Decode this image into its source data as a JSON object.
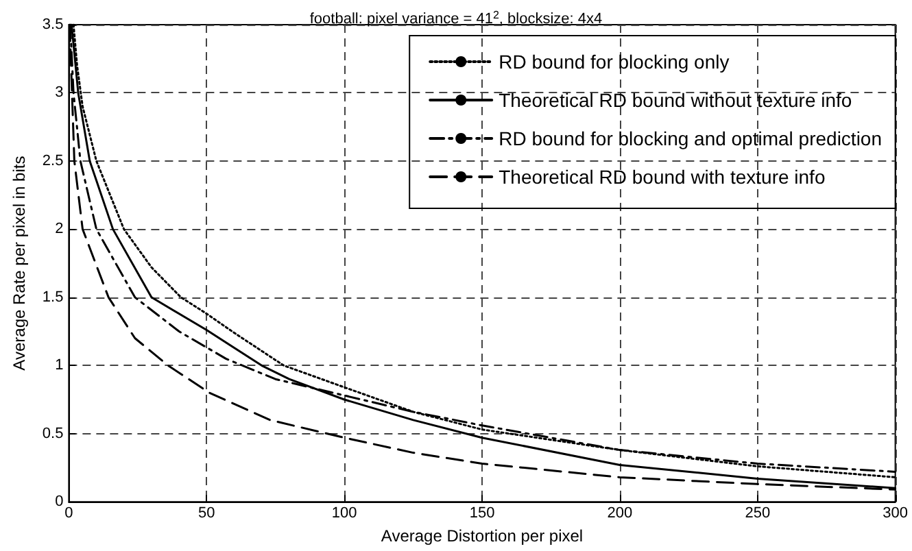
{
  "chart_data": {
    "type": "line",
    "title": "football: pixel variance = 41$^{2}$, blocksize: 4x4",
    "xlabel": "Average Distortion per pixel",
    "ylabel": "Average Rate per pixel in bits",
    "xlim": [
      0,
      300
    ],
    "xticks": [
      0,
      50,
      100,
      150,
      200,
      250,
      300
    ],
    "ylim": [
      0,
      3.5
    ],
    "yticks": [
      0,
      0.5,
      1,
      1.5,
      2,
      2.5,
      3,
      3.5
    ],
    "grid": true,
    "legend": "top right",
    "marker": "none",
    "series": [
      {
        "name": "RD bound for blocking only",
        "color": "#000000",
        "line_style": "dotted",
        "x": [
          1.7,
          3,
          5,
          10,
          20,
          30,
          40.7,
          50,
          60,
          78,
          100,
          125,
          150,
          200,
          250,
          300
        ],
        "values": [
          3.5,
          3.2,
          2.9,
          2.5,
          2,
          1.72,
          1.5,
          1.38,
          1.24,
          1,
          0.84,
          0.66,
          0.53,
          0.38,
          0.26,
          0.18
        ]
      },
      {
        "name": "Theoretical RD bound without texture info",
        "color": "#000000",
        "line_style": "solid",
        "x": [
          1,
          3.4,
          7.6,
          16,
          30,
          50,
          70,
          80,
          100,
          125,
          150,
          200,
          250,
          300
        ],
        "values": [
          3.5,
          3,
          2.5,
          2,
          1.5,
          1.26,
          1,
          0.9,
          0.75,
          0.6,
          0.47,
          0.27,
          0.17,
          0.1
        ]
      },
      {
        "name": "RD bound for blocking and optimal prediction",
        "color": "#000000",
        "line_style": "dashdot",
        "x": [
          0.5,
          1.7,
          4.2,
          10,
          24,
          40,
          57,
          75,
          100,
          125,
          150,
          200,
          250,
          300
        ],
        "values": [
          3.5,
          3,
          2.5,
          2,
          1.5,
          1.25,
          1.05,
          0.9,
          0.78,
          0.66,
          0.56,
          0.38,
          0.28,
          0.22
        ]
      },
      {
        "name": "Theoretical RD bound with texture info",
        "color": "#000000",
        "line_style": "dashed",
        "x": [
          0.3,
          2,
          5,
          14.4,
          24,
          36,
          51,
          73,
          100,
          125,
          150,
          200,
          250,
          300
        ],
        "values": [
          3.5,
          2.5,
          2,
          1.5,
          1.2,
          1,
          0.8,
          0.6,
          0.47,
          0.36,
          0.28,
          0.18,
          0.13,
          0.09
        ]
      }
    ]
  }
}
